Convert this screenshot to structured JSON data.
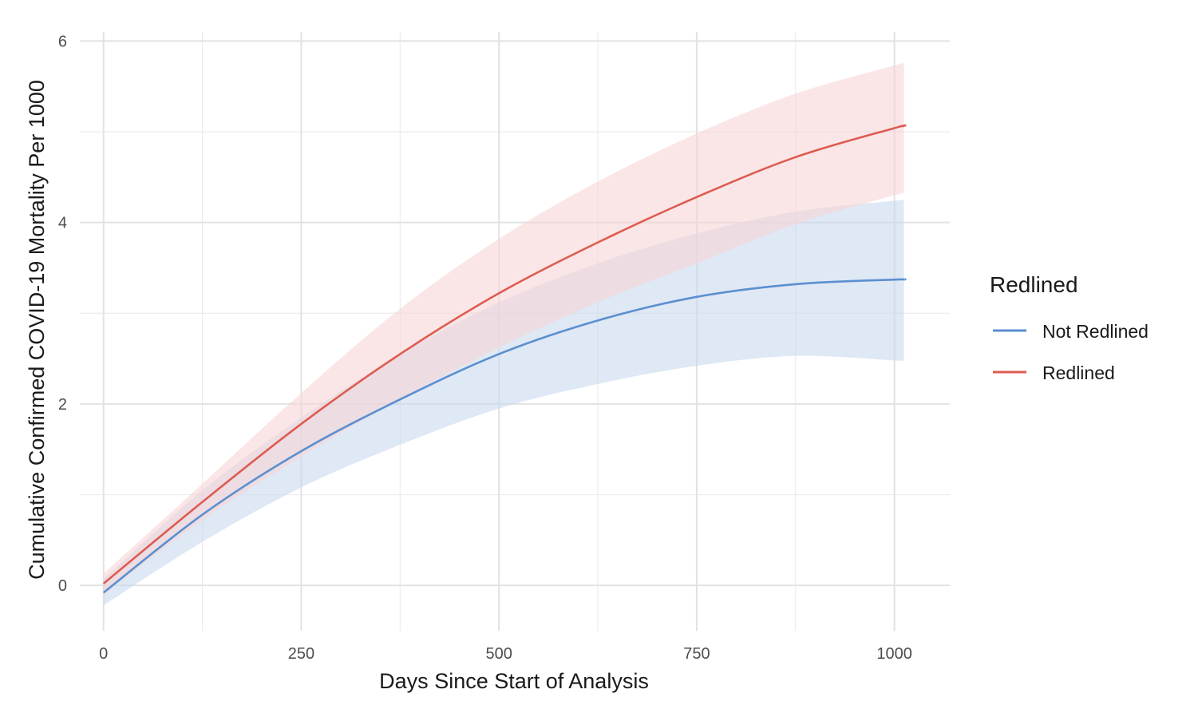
{
  "chart_data": {
    "type": "line",
    "title": "",
    "xlabel": "Days Since Start of Analysis",
    "ylabel": "Cumulative Confirmed COVID-19 Mortality Per 1000",
    "xlim": [
      -30,
      1070
    ],
    "ylim": [
      -0.5,
      6.1
    ],
    "x_ticks": [
      0,
      250,
      500,
      750,
      1000
    ],
    "x_tick_labels": [
      "0",
      "250",
      "500",
      "750",
      "1000"
    ],
    "y_ticks": [
      0,
      2,
      4,
      6
    ],
    "y_tick_labels": [
      "0",
      "2",
      "4",
      "6"
    ],
    "grid": true,
    "legend": {
      "title": "Redlined",
      "position": "right"
    },
    "series": [
      {
        "name": "Not Redlined",
        "color": "#5b8fd0",
        "band_color": "#c9d9ee",
        "x": [
          0,
          125,
          250,
          375,
          500,
          625,
          750,
          875,
          1000,
          1012
        ],
        "y": [
          -0.08,
          0.78,
          1.48,
          2.05,
          2.55,
          2.92,
          3.18,
          3.32,
          3.37,
          3.37
        ],
        "lower": [
          -0.22,
          0.48,
          1.08,
          1.55,
          1.95,
          2.22,
          2.42,
          2.53,
          2.48,
          2.48
        ],
        "upper": [
          0.07,
          1.05,
          1.85,
          2.55,
          3.12,
          3.55,
          3.88,
          4.12,
          4.24,
          4.25
        ]
      },
      {
        "name": "Redlined",
        "color": "#de5b52",
        "band_color": "#f6d6d6",
        "x": [
          0,
          125,
          250,
          375,
          500,
          625,
          750,
          875,
          1000,
          1012
        ],
        "y": [
          0.02,
          0.92,
          1.78,
          2.55,
          3.22,
          3.78,
          4.28,
          4.72,
          5.04,
          5.06
        ],
        "lower": [
          -0.1,
          0.72,
          1.42,
          2.05,
          2.62,
          3.12,
          3.55,
          3.98,
          4.3,
          4.32
        ],
        "upper": [
          0.13,
          1.12,
          2.12,
          3.05,
          3.82,
          4.45,
          4.98,
          5.42,
          5.73,
          5.76
        ]
      }
    ]
  }
}
